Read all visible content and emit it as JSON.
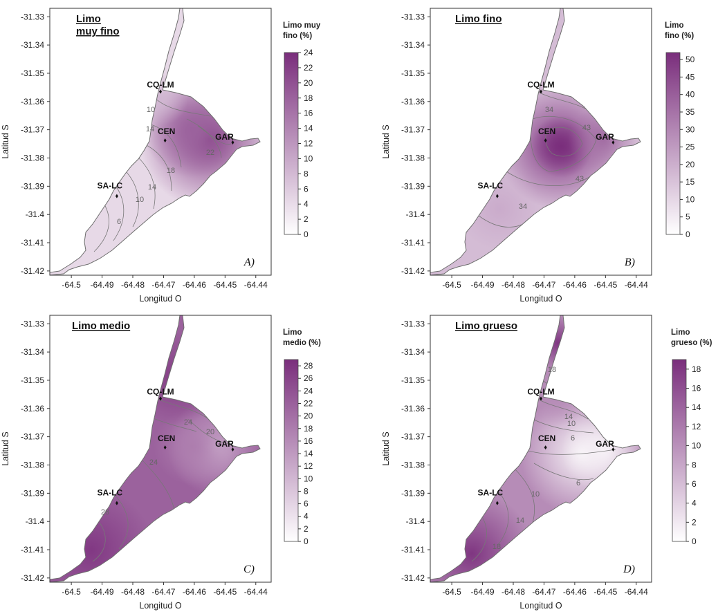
{
  "chart_data": [
    {
      "type": "heatmap",
      "panel_letter": "A)",
      "title_lines": [
        "Limo",
        "muy fino"
      ],
      "xlabel": "Longitud O",
      "ylabel": "Latitud S",
      "x_ticks": [
        "-64.5",
        "-64.49",
        "-64.48",
        "-64.47",
        "-64.46",
        "-64.45",
        "-64.44"
      ],
      "y_ticks": [
        "-31.33",
        "-31.34",
        "-31.35",
        "-31.36",
        "-31.37",
        "-31.38",
        "-31.39",
        "-31.4",
        "-31.41",
        "-31.42"
      ],
      "colorbar_title_lines": [
        "Limo muy",
        "fino (%)"
      ],
      "colorbar_range": [
        0,
        24
      ],
      "colorbar_ticks": [
        "0",
        "2",
        "4",
        "6",
        "8",
        "10",
        "12",
        "14",
        "16",
        "18",
        "20",
        "22",
        "24"
      ],
      "stations": [
        {
          "name": "CQ-LM",
          "lon": -64.471,
          "lat": -31.3565,
          "value": 8
        },
        {
          "name": "CEN",
          "lon": -64.4695,
          "lat": -31.3738,
          "value": 16
        },
        {
          "name": "GAR",
          "lon": -64.4475,
          "lat": -31.3745,
          "value": 23
        },
        {
          "name": "SA-LC",
          "lon": -64.4852,
          "lat": -31.3935,
          "value": 9
        }
      ],
      "contour_labels": [
        "10",
        "14",
        "22",
        "18",
        "14",
        "10",
        "6"
      ]
    },
    {
      "type": "heatmap",
      "panel_letter": "B)",
      "title_lines": [
        "Limo fino"
      ],
      "xlabel": "Longitud O",
      "ylabel": "Latitud S",
      "x_ticks": [
        "-64.5",
        "-64.49",
        "-64.48",
        "-64.47",
        "-64.46",
        "-64.45",
        "-64.44"
      ],
      "y_ticks": [
        "-31.33",
        "-31.34",
        "-31.35",
        "-31.36",
        "-31.37",
        "-31.38",
        "-31.39",
        "-31.4",
        "-31.41",
        "-31.42"
      ],
      "colorbar_title_lines": [
        "Limo",
        "fino (%)"
      ],
      "colorbar_range": [
        0,
        52
      ],
      "colorbar_ticks": [
        "0",
        "5",
        "10",
        "15",
        "20",
        "25",
        "30",
        "35",
        "40",
        "45",
        "50"
      ],
      "stations": [
        {
          "name": "CQ-LM",
          "lon": -64.471,
          "lat": -31.3565,
          "value": 30
        },
        {
          "name": "CEN",
          "lon": -64.4695,
          "lat": -31.3738,
          "value": 50
        },
        {
          "name": "GAR",
          "lon": -64.4475,
          "lat": -31.3745,
          "value": 38
        },
        {
          "name": "SA-LC",
          "lon": -64.4852,
          "lat": -31.3935,
          "value": 24
        }
      ],
      "contour_labels": [
        "34",
        "43",
        "43",
        "34"
      ]
    },
    {
      "type": "heatmap",
      "panel_letter": "C)",
      "title_lines": [
        "Limo medio"
      ],
      "xlabel": "Longitud O",
      "ylabel": "Latitud S",
      "x_ticks": [
        "-64.5",
        "-64.49",
        "-64.48",
        "-64.47",
        "-64.46",
        "-64.45",
        "-64.44"
      ],
      "y_ticks": [
        "-31.33",
        "-31.34",
        "-31.35",
        "-31.36",
        "-31.37",
        "-31.38",
        "-31.39",
        "-31.4",
        "-31.41",
        "-31.42"
      ],
      "colorbar_title_lines": [
        "Limo",
        "medio (%)"
      ],
      "colorbar_range": [
        0,
        29
      ],
      "colorbar_ticks": [
        "0",
        "2",
        "4",
        "6",
        "8",
        "10",
        "12",
        "14",
        "16",
        "18",
        "20",
        "22",
        "24",
        "26",
        "28"
      ],
      "stations": [
        {
          "name": "CQ-LM",
          "lon": -64.471,
          "lat": -31.3565,
          "value": 26
        },
        {
          "name": "CEN",
          "lon": -64.4695,
          "lat": -31.3738,
          "value": 21
        },
        {
          "name": "GAR",
          "lon": -64.4475,
          "lat": -31.3745,
          "value": 14
        },
        {
          "name": "SA-LC",
          "lon": -64.4852,
          "lat": -31.3935,
          "value": 28
        }
      ],
      "contour_labels": [
        "24",
        "20",
        "24",
        "28"
      ]
    },
    {
      "type": "heatmap",
      "panel_letter": "D)",
      "title_lines": [
        "Limo grueso"
      ],
      "xlabel": "Longitud O",
      "ylabel": "Latitud S",
      "x_ticks": [
        "-64.5",
        "-64.49",
        "-64.48",
        "-64.47",
        "-64.46",
        "-64.45",
        "-64.44"
      ],
      "y_ticks": [
        "-31.33",
        "-31.34",
        "-31.35",
        "-31.36",
        "-31.37",
        "-31.38",
        "-31.39",
        "-31.4",
        "-31.41",
        "-31.42"
      ],
      "colorbar_title_lines": [
        "Limo",
        "grueso (%)"
      ],
      "colorbar_range": [
        0,
        19
      ],
      "colorbar_ticks": [
        "0",
        "2",
        "4",
        "6",
        "8",
        "10",
        "12",
        "14",
        "16",
        "18"
      ],
      "stations": [
        {
          "name": "CQ-LM",
          "lon": -64.471,
          "lat": -31.3565,
          "value": 16
        },
        {
          "name": "CEN",
          "lon": -64.4695,
          "lat": -31.3738,
          "value": 3
        },
        {
          "name": "GAR",
          "lon": -64.4475,
          "lat": -31.3745,
          "value": 2
        },
        {
          "name": "SA-LC",
          "lon": -64.4852,
          "lat": -31.3935,
          "value": 17
        }
      ],
      "contour_labels": [
        "18",
        "14",
        "10",
        "6",
        "6",
        "10",
        "14",
        "18"
      ]
    }
  ],
  "colors": {
    "low": "#ffffff",
    "high": "#7a2e7c",
    "outline": "#6e6e6e",
    "contour": "#777777"
  }
}
